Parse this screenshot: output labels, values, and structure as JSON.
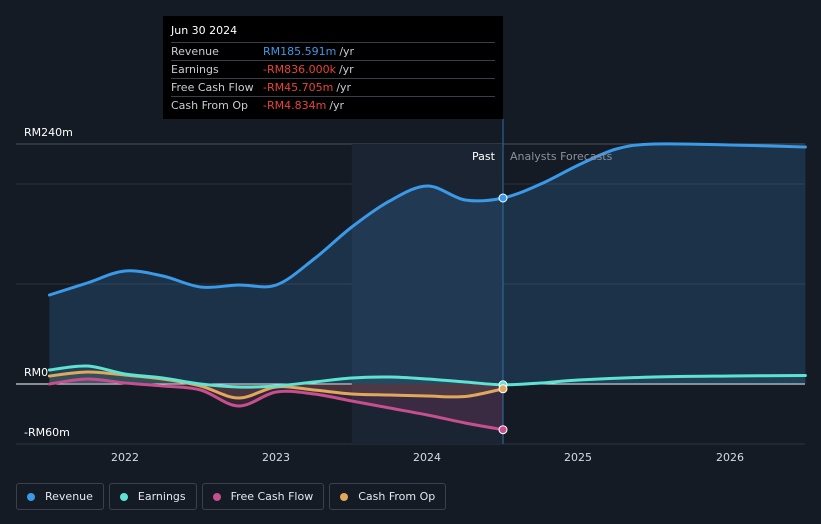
{
  "chart_data": {
    "type": "line",
    "currency_unit": "RM",
    "y_axis": {
      "labels": [
        "RM240m",
        "RM0",
        "-RM60m"
      ],
      "ylim": [
        -60,
        240
      ]
    },
    "x_axis": {
      "ticks": [
        "2022",
        "2023",
        "2024",
        "2025",
        "2026"
      ],
      "xlim": [
        2021.5,
        2026.5
      ]
    },
    "regions": {
      "past_label": "Past",
      "forecast_label": "Analysts Forecasts",
      "divider_x": 2024.5,
      "past_shade_start": 2023.5
    },
    "tooltip": {
      "date": "Jun 30 2024",
      "rows": [
        {
          "label": "Revenue",
          "value": "RM185.591m",
          "unit": "/yr",
          "color": "#3b9ae8"
        },
        {
          "label": "Earnings",
          "value": "-RM836.000k",
          "unit": "/yr",
          "color": "#e8443c"
        },
        {
          "label": "Free Cash Flow",
          "value": "-RM45.705m",
          "unit": "/yr",
          "color": "#e8443c"
        },
        {
          "label": "Cash From Op",
          "value": "-RM4.834m",
          "unit": "/yr",
          "color": "#e8443c"
        }
      ]
    },
    "series": [
      {
        "name": "Revenue",
        "color": "#3b9ae8",
        "key": "revenue",
        "points": [
          [
            2021.5,
            89
          ],
          [
            2021.75,
            101
          ],
          [
            2022.0,
            113
          ],
          [
            2022.25,
            108
          ],
          [
            2022.5,
            97
          ],
          [
            2022.75,
            99
          ],
          [
            2023.0,
            99
          ],
          [
            2023.25,
            125
          ],
          [
            2023.5,
            157
          ],
          [
            2023.75,
            183
          ],
          [
            2024.0,
            198
          ],
          [
            2024.25,
            184
          ],
          [
            2024.5,
            186
          ],
          [
            2024.75,
            200
          ],
          [
            2025.0,
            219
          ],
          [
            2025.25,
            235
          ],
          [
            2025.5,
            240
          ],
          [
            2026.0,
            239
          ],
          [
            2026.5,
            237
          ]
        ]
      },
      {
        "name": "Earnings",
        "color": "#5ee3d2",
        "key": "earnings",
        "points": [
          [
            2021.5,
            14
          ],
          [
            2021.75,
            18
          ],
          [
            2022.0,
            10
          ],
          [
            2022.25,
            6
          ],
          [
            2022.5,
            0
          ],
          [
            2022.75,
            -3
          ],
          [
            2023.0,
            -2
          ],
          [
            2023.25,
            2
          ],
          [
            2023.5,
            6
          ],
          [
            2023.75,
            7
          ],
          [
            2024.0,
            5
          ],
          [
            2024.25,
            2
          ],
          [
            2024.5,
            -0.8
          ],
          [
            2024.75,
            1
          ],
          [
            2025.0,
            4
          ],
          [
            2025.5,
            7
          ],
          [
            2026.0,
            8
          ],
          [
            2026.5,
            8.5
          ]
        ]
      },
      {
        "name": "Free Cash Flow",
        "color": "#c64f8e",
        "key": "fcf",
        "points": [
          [
            2021.5,
            0
          ],
          [
            2021.75,
            5
          ],
          [
            2022.0,
            1
          ],
          [
            2022.25,
            -2
          ],
          [
            2022.5,
            -6
          ],
          [
            2022.75,
            -22
          ],
          [
            2023.0,
            -8
          ],
          [
            2023.25,
            -10
          ],
          [
            2023.5,
            -17
          ],
          [
            2023.75,
            -24
          ],
          [
            2024.0,
            -31
          ],
          [
            2024.25,
            -39
          ],
          [
            2024.5,
            -45.7
          ]
        ]
      },
      {
        "name": "Cash From Op",
        "color": "#e0a85c",
        "key": "cfo",
        "points": [
          [
            2021.5,
            8
          ],
          [
            2021.75,
            12
          ],
          [
            2022.0,
            9
          ],
          [
            2022.25,
            5
          ],
          [
            2022.5,
            -2
          ],
          [
            2022.75,
            -14
          ],
          [
            2023.0,
            -3
          ],
          [
            2023.25,
            -6
          ],
          [
            2023.5,
            -10
          ],
          [
            2023.75,
            -11
          ],
          [
            2024.0,
            -12
          ],
          [
            2024.25,
            -12.5
          ],
          [
            2024.5,
            -4.8
          ]
        ]
      }
    ]
  },
  "legend": [
    {
      "label": "Revenue",
      "color": "#3b9ae8"
    },
    {
      "label": "Earnings",
      "color": "#5ee3d2"
    },
    {
      "label": "Free Cash Flow",
      "color": "#c64f8e"
    },
    {
      "label": "Cash From Op",
      "color": "#e0a85c"
    }
  ]
}
